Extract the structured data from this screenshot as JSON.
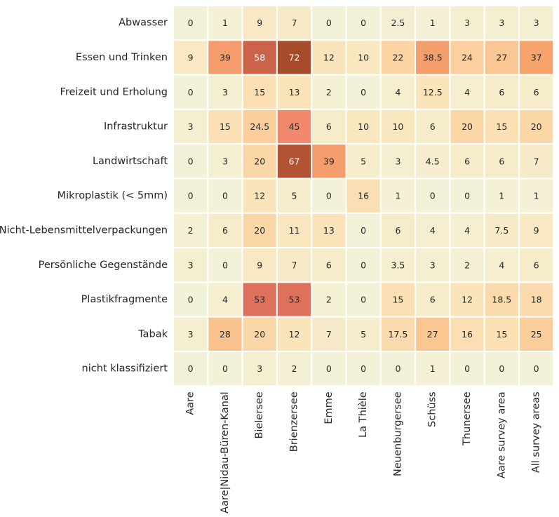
{
  "chart_data": {
    "type": "heatmap",
    "rows": [
      "Abwasser",
      "Essen und Trinken",
      "Freizeit und Erholung",
      "Infrastruktur",
      "Landwirtschaft",
      "Mikroplastik (< 5mm)",
      "Nicht-Lebensmittelverpackungen",
      "Persönliche Gegenstände",
      "Plastikfragmente",
      "Tabak",
      "nicht klassifiziert"
    ],
    "columns": [
      "Aare",
      "Aare|Nidau-Büren-Kanal",
      "Bielersee",
      "Brienzersee",
      "Emme",
      "La Thièle",
      "Neuenburgersee",
      "Schüss",
      "Thunersee",
      "Aare survey area",
      "All survey areas"
    ],
    "values": [
      [
        0,
        1,
        9,
        7,
        0,
        0,
        2.5,
        1,
        3,
        3,
        3
      ],
      [
        9,
        39,
        58,
        72,
        12,
        10,
        22,
        38.5,
        24,
        27,
        37
      ],
      [
        0,
        3,
        15,
        13,
        2,
        0,
        4,
        12.5,
        4,
        6,
        6
      ],
      [
        3,
        15,
        24.5,
        45,
        6,
        10,
        10,
        6,
        20,
        15,
        20
      ],
      [
        0,
        3,
        20,
        67,
        39,
        5,
        3,
        4.5,
        6,
        6,
        7
      ],
      [
        0,
        0,
        12,
        5,
        0,
        16,
        1,
        0,
        0,
        1,
        1
      ],
      [
        2,
        6,
        20,
        11,
        13,
        0,
        6,
        4,
        4,
        7.5,
        9
      ],
      [
        3,
        0,
        9,
        7,
        6,
        0,
        3.5,
        3,
        2,
        4,
        6
      ],
      [
        0,
        4,
        53,
        53,
        2,
        0,
        15,
        6,
        12,
        18.5,
        18
      ],
      [
        3,
        28,
        20,
        12,
        7,
        5,
        17.5,
        27,
        16,
        15,
        25
      ],
      [
        0,
        0,
        3,
        2,
        0,
        0,
        0,
        1,
        0,
        0,
        0
      ]
    ],
    "colormap": [
      "#f3f2d9",
      "#fae5bb",
      "#fcd09e",
      "#f5a66b",
      "#f27f6c",
      "#c25d43",
      "#a64c2a"
    ],
    "vmin": 0,
    "vmax": 72,
    "cell_labels": true,
    "colorbar": false,
    "cell_border_color": "#ffffff",
    "title": "",
    "xlabel": "",
    "ylabel": ""
  }
}
